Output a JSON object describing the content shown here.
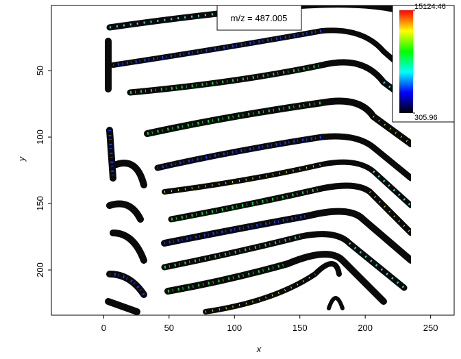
{
  "chart_data": {
    "type": "image",
    "title": "m/z = 487.005",
    "x_label": "x",
    "y_label": "y",
    "xlim": [
      -40,
      268
    ],
    "ylim": [
      1,
      234
    ],
    "y_inverted": true,
    "xticks": [
      0,
      50,
      100,
      150,
      200,
      250
    ],
    "yticks": [
      50,
      100,
      150,
      200
    ],
    "extent": [
      0,
      235,
      1,
      234
    ],
    "clim": [
      305.96,
      15124.46
    ],
    "cticks": [
      305.96,
      15124.46
    ],
    "colormap": [
      "#000000",
      "#0000ff",
      "#00ffff",
      "#00ff00",
      "#ffff00",
      "#ff0000"
    ]
  }
}
